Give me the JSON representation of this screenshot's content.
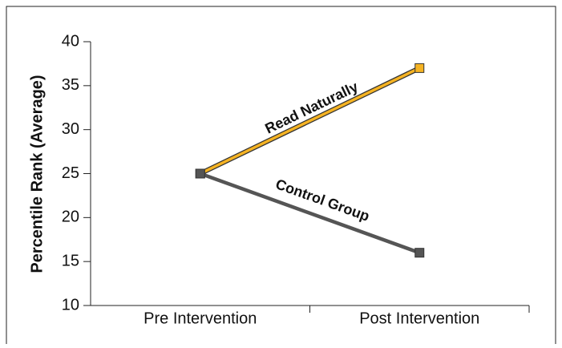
{
  "chart_data": {
    "type": "line",
    "y_label": "Percentile Rank (Average)",
    "categories": [
      "Pre Intervention",
      "Post Intervention"
    ],
    "series": [
      {
        "name": "Read Naturally",
        "color": "#f5b323",
        "values": [
          25,
          37
        ]
      },
      {
        "name": "Control Group",
        "color": "#555555",
        "values": [
          25,
          16
        ]
      }
    ],
    "ylim": [
      10,
      40
    ],
    "yticks": [
      10,
      15,
      20,
      25,
      30,
      35,
      40
    ]
  }
}
